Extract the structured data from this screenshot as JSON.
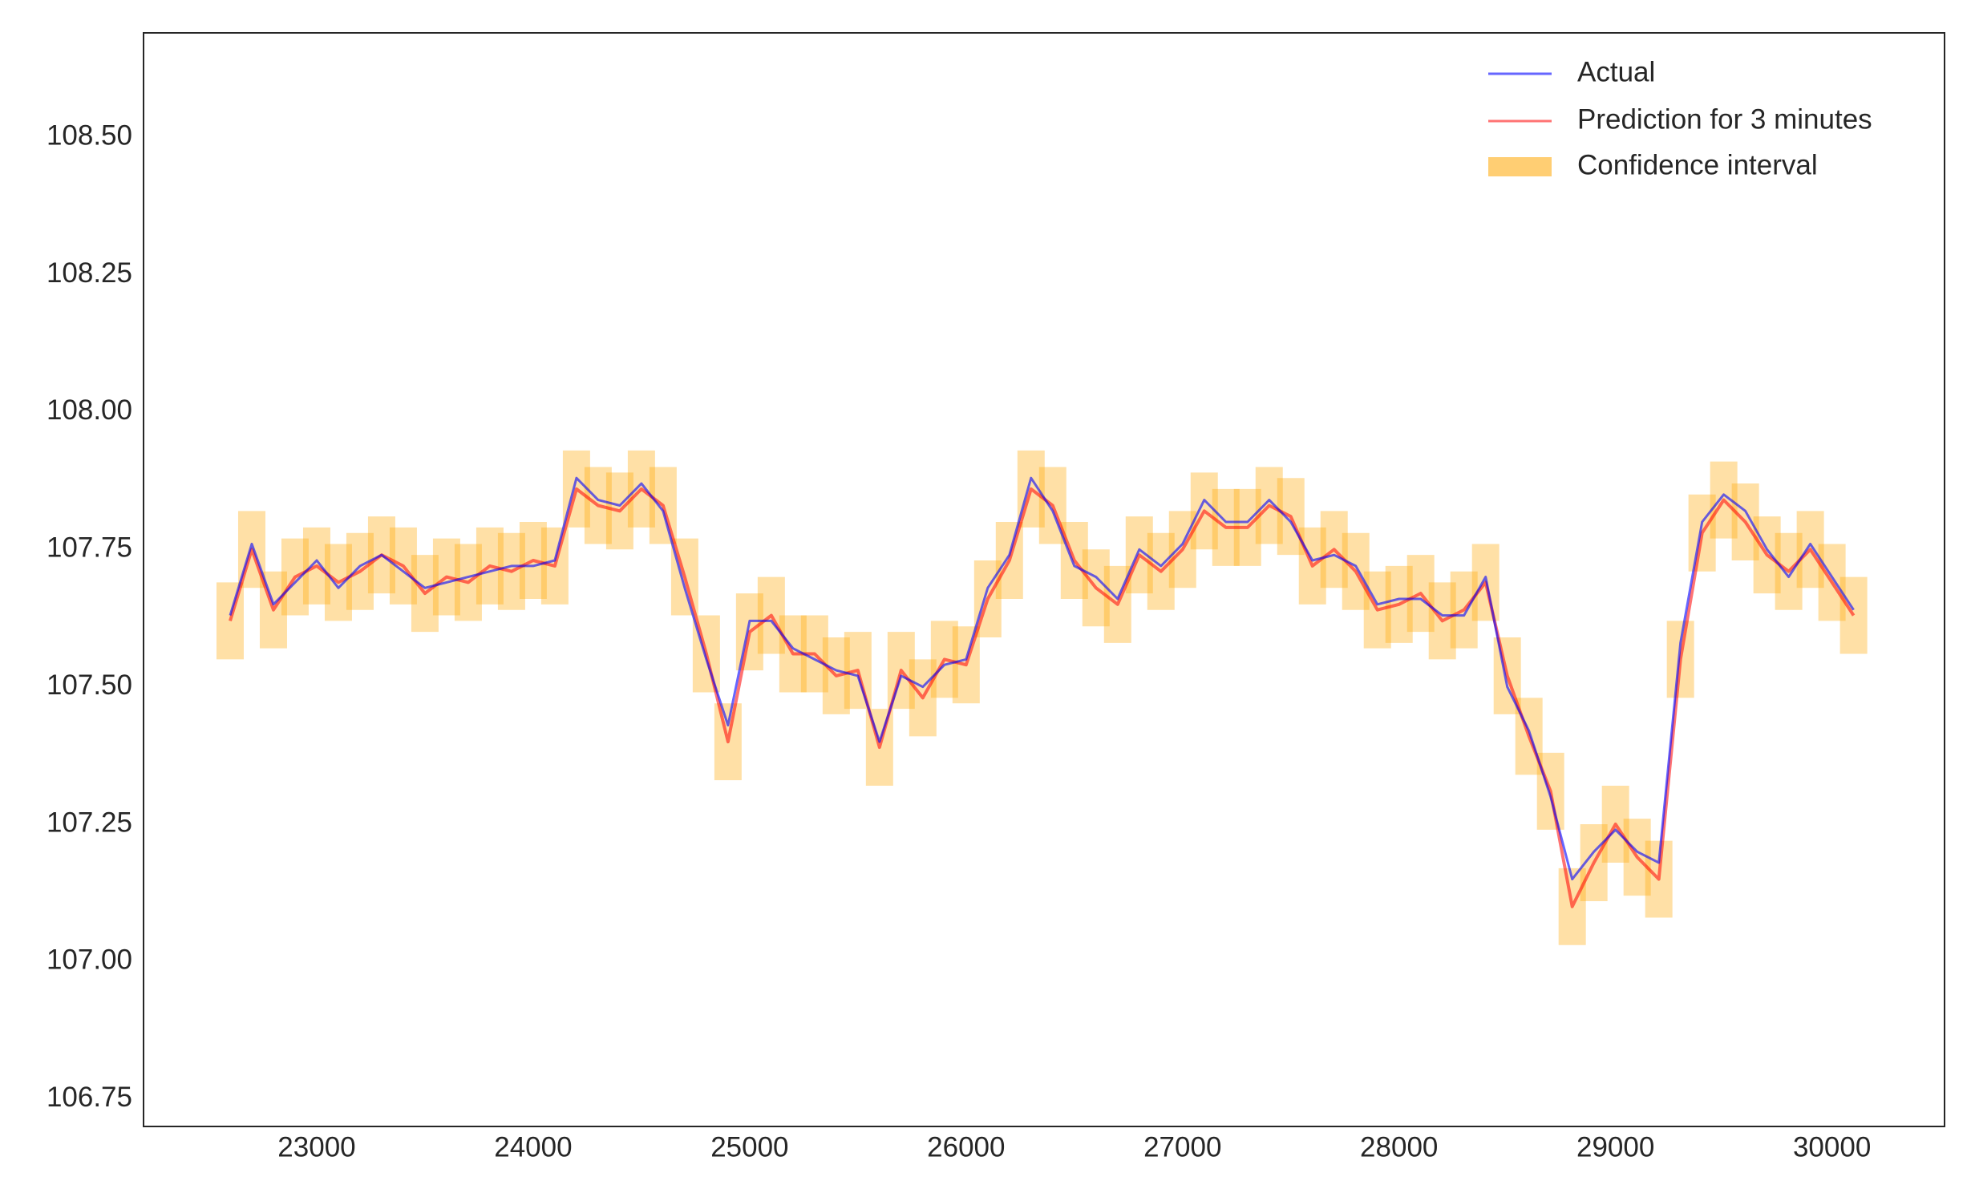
{
  "chart_data": {
    "type": "line",
    "x": [
      22600,
      22700,
      22800,
      22900,
      23000,
      23100,
      23200,
      23300,
      23400,
      23500,
      23600,
      23700,
      23800,
      23900,
      24000,
      24100,
      24200,
      24300,
      24400,
      24500,
      24600,
      24700,
      24800,
      24900,
      25000,
      25100,
      25200,
      25300,
      25400,
      25500,
      25600,
      25700,
      25800,
      25900,
      26000,
      26100,
      26200,
      26300,
      26400,
      26500,
      26600,
      26700,
      26800,
      26900,
      27000,
      27100,
      27200,
      27300,
      27400,
      27500,
      27600,
      27700,
      27800,
      27900,
      28000,
      28100,
      28200,
      28300,
      28400,
      28500,
      28600,
      28700,
      28800,
      28900,
      29000,
      29100,
      29200,
      29300,
      29400,
      29500,
      29600,
      29700,
      29800,
      29900,
      30000,
      30100
    ],
    "series": [
      {
        "name": "Actual",
        "color": "#0000ff",
        "values": [
          107.63,
          107.76,
          107.65,
          107.69,
          107.73,
          107.68,
          107.72,
          107.74,
          107.71,
          107.68,
          107.69,
          107.7,
          107.71,
          107.72,
          107.72,
          107.73,
          107.88,
          107.84,
          107.83,
          107.87,
          107.82,
          107.68,
          107.55,
          107.43,
          107.62,
          107.62,
          107.57,
          107.55,
          107.53,
          107.52,
          107.4,
          107.52,
          107.5,
          107.54,
          107.55,
          107.68,
          107.74,
          107.88,
          107.82,
          107.72,
          107.7,
          107.66,
          107.75,
          107.72,
          107.76,
          107.84,
          107.8,
          107.8,
          107.84,
          107.8,
          107.73,
          107.74,
          107.72,
          107.65,
          107.66,
          107.66,
          107.63,
          107.63,
          107.7,
          107.5,
          107.42,
          107.3,
          107.15,
          107.2,
          107.24,
          107.2,
          107.18,
          107.58,
          107.8,
          107.85,
          107.82,
          107.75,
          107.7,
          107.76,
          107.7,
          107.64
        ]
      },
      {
        "name": "Prediction for 3 minutes",
        "color": "#ff0000",
        "values": [
          107.62,
          107.75,
          107.64,
          107.7,
          107.72,
          107.69,
          107.71,
          107.74,
          107.72,
          107.67,
          107.7,
          107.69,
          107.72,
          107.71,
          107.73,
          107.72,
          107.86,
          107.83,
          107.82,
          107.86,
          107.83,
          107.7,
          107.56,
          107.4,
          107.6,
          107.63,
          107.56,
          107.56,
          107.52,
          107.53,
          107.39,
          107.53,
          107.48,
          107.55,
          107.54,
          107.66,
          107.73,
          107.86,
          107.83,
          107.73,
          107.68,
          107.65,
          107.74,
          107.71,
          107.75,
          107.82,
          107.79,
          107.79,
          107.83,
          107.81,
          107.72,
          107.75,
          107.71,
          107.64,
          107.65,
          107.67,
          107.62,
          107.64,
          107.69,
          107.52,
          107.41,
          107.31,
          107.1,
          107.18,
          107.25,
          107.19,
          107.15,
          107.55,
          107.78,
          107.84,
          107.8,
          107.74,
          107.71,
          107.75,
          107.69,
          107.63
        ]
      },
      {
        "name": "Confidence interval",
        "color": "#ffa500",
        "lower": [
          107.55,
          107.68,
          107.57,
          107.63,
          107.65,
          107.62,
          107.64,
          107.67,
          107.65,
          107.6,
          107.63,
          107.62,
          107.65,
          107.64,
          107.66,
          107.65,
          107.79,
          107.76,
          107.75,
          107.79,
          107.76,
          107.63,
          107.49,
          107.33,
          107.53,
          107.56,
          107.49,
          107.49,
          107.45,
          107.46,
          107.32,
          107.46,
          107.41,
          107.48,
          107.47,
          107.59,
          107.66,
          107.79,
          107.76,
          107.66,
          107.61,
          107.58,
          107.67,
          107.64,
          107.68,
          107.75,
          107.72,
          107.72,
          107.76,
          107.74,
          107.65,
          107.68,
          107.64,
          107.57,
          107.58,
          107.6,
          107.55,
          107.57,
          107.62,
          107.45,
          107.34,
          107.24,
          107.03,
          107.11,
          107.18,
          107.12,
          107.08,
          107.48,
          107.71,
          107.77,
          107.73,
          107.67,
          107.64,
          107.68,
          107.62,
          107.56
        ],
        "upper": [
          107.69,
          107.82,
          107.71,
          107.77,
          107.79,
          107.76,
          107.78,
          107.81,
          107.79,
          107.74,
          107.77,
          107.76,
          107.79,
          107.78,
          107.8,
          107.79,
          107.93,
          107.9,
          107.89,
          107.93,
          107.9,
          107.77,
          107.63,
          107.47,
          107.67,
          107.7,
          107.63,
          107.63,
          107.59,
          107.6,
          107.46,
          107.6,
          107.55,
          107.62,
          107.61,
          107.73,
          107.8,
          107.93,
          107.9,
          107.8,
          107.75,
          107.72,
          107.81,
          107.78,
          107.82,
          107.89,
          107.86,
          107.86,
          107.9,
          107.88,
          107.79,
          107.82,
          107.78,
          107.71,
          107.72,
          107.74,
          107.69,
          107.71,
          107.76,
          107.59,
          107.48,
          107.38,
          107.17,
          107.25,
          107.32,
          107.26,
          107.22,
          107.62,
          107.85,
          107.91,
          107.87,
          107.81,
          107.78,
          107.82,
          107.76,
          107.7
        ]
      }
    ],
    "xlim": [
      22200,
      30520
    ],
    "ylim": [
      106.7,
      108.69
    ],
    "xticks": [
      23000,
      24000,
      25000,
      26000,
      27000,
      28000,
      29000,
      30000
    ],
    "yticks": [
      106.75,
      {
        "value": 107.0,
        "label": "107.00"
      },
      {
        "value": 107.25,
        "label": "107.25"
      },
      {
        "value": 107.5,
        "label": "107.50"
      },
      {
        "value": 107.75,
        "label": "107.75"
      },
      {
        "value": 108.0,
        "label": "108.00"
      },
      {
        "value": 108.25,
        "label": "108.25"
      },
      {
        "value": 108.5,
        "label": "108.50"
      }
    ],
    "grid": false,
    "legend": "upper right"
  }
}
